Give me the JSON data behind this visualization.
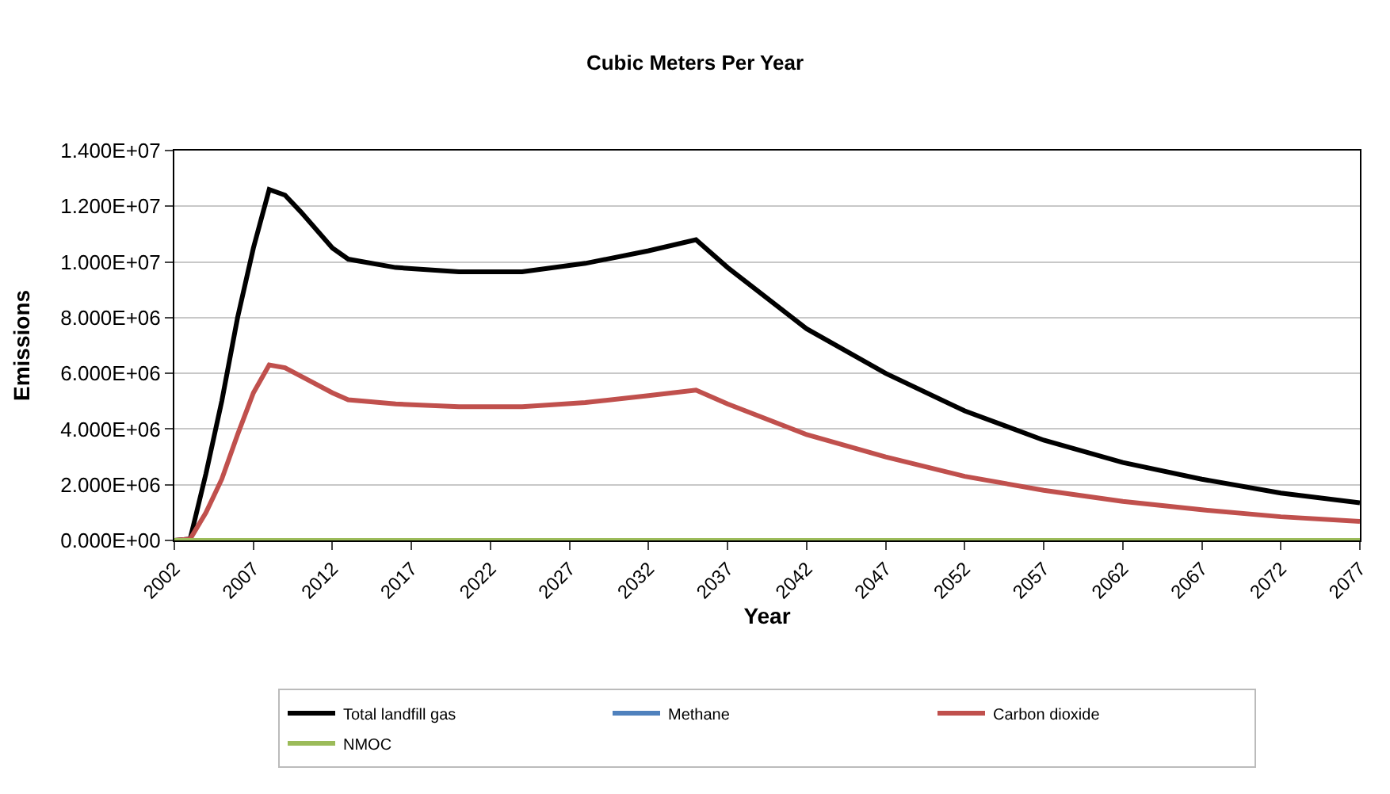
{
  "chart_data": {
    "type": "line",
    "title": "Cubic Meters Per Year",
    "xlabel": "Year",
    "ylabel": "Emissions",
    "x": [
      2002,
      2003,
      2004,
      2005,
      2006,
      2007,
      2008,
      2009,
      2010,
      2012,
      2013,
      2016,
      2020,
      2024,
      2028,
      2032,
      2035,
      2037,
      2042,
      2047,
      2052,
      2057,
      2062,
      2067,
      2072,
      2077
    ],
    "series": [
      {
        "name": "Total landfill gas",
        "color": "#000000",
        "values": [
          0,
          50000,
          2400000,
          5000000,
          8000000,
          10500000,
          12600000,
          12400000,
          11800000,
          10500000,
          10100000,
          9800000,
          9650000,
          9650000,
          9950000,
          10400000,
          10800000,
          9800000,
          7600000,
          6000000,
          4650000,
          3600000,
          2800000,
          2200000,
          1700000,
          1350000
        ]
      },
      {
        "name": "Methane",
        "color": "#4f81bd",
        "values": [
          null,
          null,
          null,
          null,
          null,
          null,
          null,
          null,
          null,
          null,
          null,
          null,
          null,
          null,
          null,
          null,
          null,
          null,
          null,
          null,
          null,
          null,
          null,
          null,
          null,
          null
        ]
      },
      {
        "name": "Carbon dioxide",
        "color": "#c0504d",
        "values": [
          0,
          50000,
          1000000,
          2200000,
          3800000,
          5300000,
          6300000,
          6200000,
          5900000,
          5300000,
          5050000,
          4900000,
          4800000,
          4800000,
          4950000,
          5200000,
          5400000,
          4900000,
          3800000,
          3000000,
          2300000,
          1800000,
          1400000,
          1100000,
          850000,
          680000
        ]
      },
      {
        "name": "NMOC",
        "color": "#9bbb59",
        "values": [
          0,
          0,
          0,
          0,
          0,
          0,
          0,
          0,
          0,
          0,
          0,
          0,
          0,
          0,
          0,
          0,
          0,
          0,
          0,
          0,
          0,
          0,
          0,
          0,
          0,
          0
        ]
      }
    ],
    "xlim": [
      2002,
      2077
    ],
    "xticks": [
      2002,
      2007,
      2012,
      2017,
      2022,
      2027,
      2032,
      2037,
      2042,
      2047,
      2052,
      2057,
      2062,
      2067,
      2072,
      2077
    ],
    "ylim": [
      0,
      14000000
    ],
    "yticks": [
      {
        "value": 0,
        "label": "0.000E+00"
      },
      {
        "value": 2000000,
        "label": "2.000E+06"
      },
      {
        "value": 4000000,
        "label": "4.000E+06"
      },
      {
        "value": 6000000,
        "label": "6.000E+06"
      },
      {
        "value": 8000000,
        "label": "8.000E+06"
      },
      {
        "value": 10000000,
        "label": "1.000E+07"
      },
      {
        "value": 12000000,
        "label": "1.200E+07"
      },
      {
        "value": 14000000,
        "label": "1.400E+07"
      }
    ],
    "grid": "y",
    "legend": "bottom",
    "marker": "none",
    "line_style": "solid"
  }
}
